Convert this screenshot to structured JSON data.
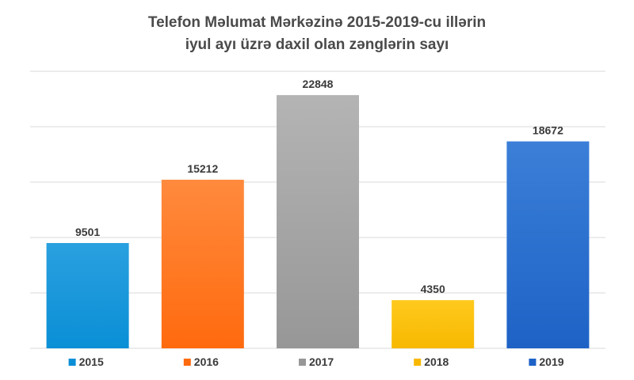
{
  "chart_data": {
    "type": "bar",
    "title": [
      "Telefon Məlumat Mərkəzinə 2015-2019-cu illərin",
      "iyul ayı üzrə daxil olan zənglərin sayı"
    ],
    "categories": [
      "2015",
      "2016",
      "2017",
      "2018",
      "2019"
    ],
    "values": [
      9501,
      15212,
      22848,
      4350,
      18672
    ],
    "colors": [
      [
        "#2aa0df",
        "#0a8fd6"
      ],
      [
        "#ff8a3d",
        "#ff6a0e"
      ],
      [
        "#b4b4b4",
        "#979797"
      ],
      [
        "#ffca1e",
        "#f7b800"
      ],
      [
        "#3b7fd8",
        "#1e62c6"
      ]
    ],
    "legend": [
      "2015",
      "2016",
      "2017",
      "2018",
      "2019"
    ],
    "legend_position": "bottom",
    "ylim": [
      0,
      25000
    ],
    "grid": true,
    "gridline_step": 5000
  }
}
